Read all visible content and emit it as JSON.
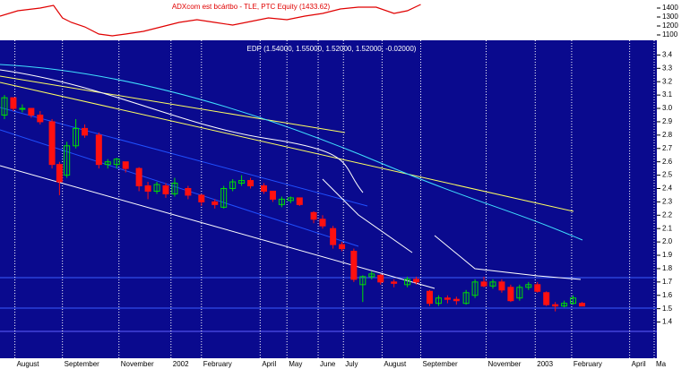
{
  "chart_data": [
    {
      "type": "line",
      "title": "ADXcom est bcártbo - TLE, PTC Equity (1433.62)",
      "color": "#e00000",
      "x": [
        0,
        2.4,
        5.4,
        7.2,
        8.4,
        9.6,
        11.4,
        13.3,
        15.1,
        16.9,
        19.3,
        21.7,
        24.1,
        26.5,
        28.9,
        31.3,
        33.7,
        36.1,
        38.6,
        41,
        43.4,
        45.8,
        48.2,
        50.6,
        53,
        54.8,
        56.6
      ],
      "values": [
        1310,
        1370,
        1400,
        1430,
        1290,
        1240,
        1190,
        1110,
        1090,
        1110,
        1140,
        1190,
        1240,
        1270,
        1240,
        1210,
        1250,
        1290,
        1270,
        1310,
        1340,
        1390,
        1410,
        1410,
        1340,
        1370,
        1440
      ],
      "xlim": [
        0,
        88
      ],
      "ylim": [
        1040,
        1490
      ],
      "yticks": [
        1100,
        1200,
        1300,
        1400
      ]
    },
    {
      "type": "candlestick",
      "title": "EDP (1.54000, 1.55000, 1.52000, 1.52000, -0.02000)",
      "up_color": "#00e000",
      "down_color": "#ff1010",
      "grid": true,
      "x": [
        0.6,
        1.8,
        3.0,
        4.2,
        5.4,
        7.0,
        8.0,
        9.0,
        10.2,
        11.4,
        13.3,
        14.5,
        15.7,
        16.9,
        18.7,
        19.9,
        21.1,
        22.3,
        23.5,
        25.3,
        27.1,
        28.9,
        30.1,
        31.3,
        32.5,
        33.7,
        35.5,
        36.7,
        37.9,
        39.1,
        40.3,
        42.2,
        43.4,
        44.8,
        46.0,
        47.6,
        48.8,
        50.0,
        51.2,
        53.0,
        54.8,
        56.0,
        57.8,
        59.0,
        60.2,
        61.4,
        62.7,
        63.9,
        65.1,
        66.3,
        67.5,
        68.7,
        69.9,
        71.1,
        72.3,
        73.5,
        74.7,
        75.9,
        77.1,
        78.3
      ],
      "open": [
        2.95,
        3.08,
        3.0,
        3.0,
        2.95,
        2.9,
        2.58,
        2.5,
        2.72,
        2.85,
        2.8,
        2.58,
        2.58,
        2.6,
        2.55,
        2.42,
        2.38,
        2.42,
        2.36,
        2.4,
        2.35,
        2.3,
        2.26,
        2.4,
        2.44,
        2.46,
        2.42,
        2.38,
        2.28,
        2.31,
        2.33,
        2.22,
        2.17,
        2.1,
        1.98,
        1.93,
        1.68,
        1.74,
        1.75,
        1.7,
        1.68,
        1.72,
        1.63,
        1.54,
        1.58,
        1.57,
        1.54,
        1.6,
        1.7,
        1.67,
        1.7,
        1.66,
        1.58,
        1.66,
        1.68,
        1.62,
        1.53,
        1.52,
        1.54,
        1.54
      ],
      "high": [
        3.1,
        3.08,
        3.03,
        3.0,
        2.98,
        2.92,
        2.6,
        2.75,
        2.92,
        2.88,
        2.82,
        2.62,
        2.63,
        2.6,
        2.56,
        2.45,
        2.45,
        2.44,
        2.48,
        2.42,
        2.36,
        2.32,
        2.42,
        2.47,
        2.5,
        2.48,
        2.44,
        2.38,
        2.34,
        2.34,
        2.33,
        2.23,
        2.2,
        2.12,
        2.0,
        1.95,
        1.75,
        1.78,
        1.76,
        1.72,
        1.74,
        1.74,
        1.64,
        1.6,
        1.6,
        1.59,
        1.64,
        1.72,
        1.74,
        1.72,
        1.72,
        1.68,
        1.68,
        1.7,
        1.7,
        1.63,
        1.55,
        1.56,
        1.6,
        1.55
      ],
      "low": [
        2.92,
        2.98,
        2.97,
        2.93,
        2.88,
        2.55,
        2.35,
        2.48,
        2.7,
        2.78,
        2.55,
        2.55,
        2.55,
        2.52,
        2.38,
        2.32,
        2.36,
        2.33,
        2.34,
        2.32,
        2.27,
        2.25,
        2.25,
        2.38,
        2.42,
        2.4,
        2.36,
        2.3,
        2.26,
        2.29,
        2.27,
        2.14,
        2.1,
        1.95,
        1.93,
        1.7,
        1.55,
        1.72,
        1.68,
        1.66,
        1.66,
        1.68,
        1.52,
        1.52,
        1.54,
        1.53,
        1.53,
        1.58,
        1.66,
        1.65,
        1.62,
        1.55,
        1.56,
        1.64,
        1.62,
        1.52,
        1.48,
        1.51,
        1.53,
        1.52
      ],
      "close": [
        3.08,
        3.0,
        3.0,
        2.95,
        2.9,
        2.58,
        2.45,
        2.72,
        2.85,
        2.8,
        2.58,
        2.6,
        2.62,
        2.55,
        2.42,
        2.38,
        2.43,
        2.36,
        2.44,
        2.35,
        2.3,
        2.28,
        2.4,
        2.45,
        2.46,
        2.42,
        2.38,
        2.32,
        2.32,
        2.33,
        2.28,
        2.17,
        2.12,
        1.98,
        1.95,
        1.72,
        1.74,
        1.76,
        1.7,
        1.69,
        1.72,
        1.7,
        1.54,
        1.58,
        1.57,
        1.56,
        1.62,
        1.7,
        1.67,
        1.7,
        1.64,
        1.56,
        1.66,
        1.68,
        1.63,
        1.53,
        1.52,
        1.54,
        1.58,
        1.52
      ],
      "xlim": [
        0,
        88
      ],
      "ylim": [
        1.33,
        3.51
      ],
      "xticks": [
        {
          "value": 2,
          "label": "August"
        },
        {
          "value": 8.4,
          "label": "September"
        },
        {
          "value": 16,
          "label": "November"
        },
        {
          "value": 23,
          "label": "2002"
        },
        {
          "value": 27.1,
          "label": "February"
        },
        {
          "value": 35,
          "label": "April"
        },
        {
          "value": 38.6,
          "label": "May"
        },
        {
          "value": 42.8,
          "label": "June"
        },
        {
          "value": 46.2,
          "label": "July"
        },
        {
          "value": 51.4,
          "label": "August"
        },
        {
          "value": 56.6,
          "label": "September"
        },
        {
          "value": 65.4,
          "label": "November"
        },
        {
          "value": 72,
          "label": "2003"
        },
        {
          "value": 76.9,
          "label": "February"
        },
        {
          "value": 84.7,
          "label": "April"
        },
        {
          "value": 88,
          "label": "Ma"
        }
      ],
      "yticks": [
        1.4,
        1.5,
        1.6,
        1.7,
        1.8,
        1.9,
        {
          "value": 2,
          "label": "2.0"
        },
        2.1,
        2.2,
        2.3,
        2.4,
        2.5,
        2.6,
        2.7,
        2.8,
        2.9,
        {
          "value": 3,
          "label": "3.0"
        },
        3.1,
        3.2,
        3.3,
        3.4
      ]
    }
  ]
}
